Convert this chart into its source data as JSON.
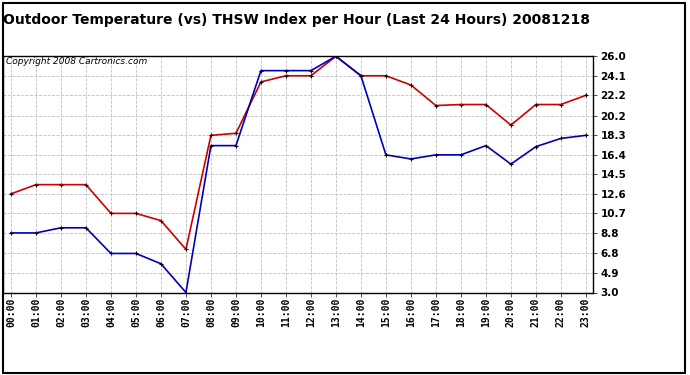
{
  "title": "Outdoor Temperature (vs) THSW Index per Hour (Last 24 Hours) 20081218",
  "copyright": "Copyright 2008 Cartronics.com",
  "hours": [
    0,
    1,
    2,
    3,
    4,
    5,
    6,
    7,
    8,
    9,
    10,
    11,
    12,
    13,
    14,
    15,
    16,
    17,
    18,
    19,
    20,
    21,
    22,
    23
  ],
  "hour_labels": [
    "00:00",
    "01:00",
    "02:00",
    "03:00",
    "04:00",
    "05:00",
    "06:00",
    "07:00",
    "08:00",
    "09:00",
    "10:00",
    "11:00",
    "12:00",
    "13:00",
    "14:00",
    "15:00",
    "16:00",
    "17:00",
    "18:00",
    "19:00",
    "20:00",
    "21:00",
    "22:00",
    "23:00"
  ],
  "red_data": [
    12.6,
    13.5,
    13.5,
    13.5,
    10.7,
    10.7,
    10.0,
    7.2,
    18.3,
    18.5,
    23.5,
    24.1,
    24.1,
    26.0,
    24.1,
    24.1,
    23.2,
    21.2,
    21.3,
    21.3,
    19.3,
    21.3,
    21.3,
    22.2
  ],
  "blue_data": [
    8.8,
    8.8,
    9.3,
    9.3,
    6.8,
    6.8,
    5.8,
    3.0,
    17.3,
    17.3,
    24.6,
    24.6,
    24.6,
    26.0,
    24.1,
    16.4,
    16.0,
    16.4,
    16.4,
    17.3,
    15.5,
    17.2,
    18.0,
    18.3
  ],
  "yticks": [
    3.0,
    4.9,
    6.8,
    8.8,
    10.7,
    12.6,
    14.5,
    16.4,
    18.3,
    20.2,
    22.2,
    24.1,
    26.0
  ],
  "ymin": 3.0,
  "ymax": 26.0,
  "red_color": "#cc0000",
  "blue_color": "#0000bb",
  "bg_color": "#ffffff",
  "grid_color": "#c0c0c0",
  "title_fontsize": 10,
  "copyright_fontsize": 6.5,
  "tick_fontsize": 7,
  "ytick_fontsize": 7.5
}
